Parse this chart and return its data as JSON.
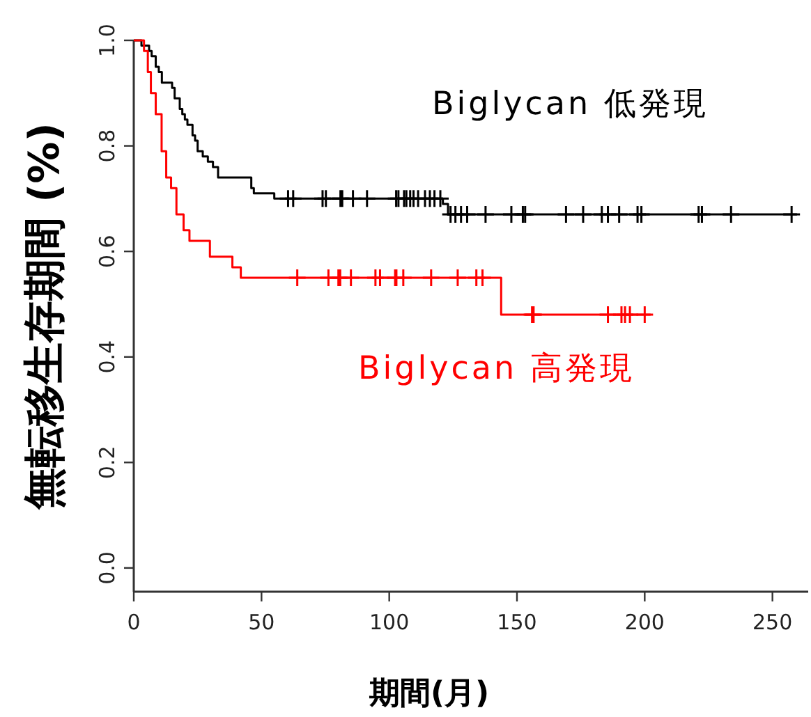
{
  "chart_data": {
    "type": "step",
    "xlabel": "期間(月)",
    "ylabel": "無転移生存期間 (%)",
    "xlim": [
      0,
      264
    ],
    "ylim": [
      -0.045,
      1.0
    ],
    "xticks": [
      0,
      50,
      100,
      150,
      200,
      250
    ],
    "yticks": [
      {
        "value": 0,
        "label": "0.0"
      },
      {
        "value": 0.2,
        "label": "0.2"
      },
      {
        "value": 0.4,
        "label": "0.4"
      },
      {
        "value": 0.6,
        "label": "0.6"
      },
      {
        "value": 0.8,
        "label": "0.8"
      },
      {
        "value": 1,
        "label": "1.0"
      }
    ],
    "legend": "right",
    "grid": false,
    "series": [
      {
        "name": "Biglycan 低発現",
        "color": "#000000",
        "x": [
          0,
          3,
          6,
          7,
          8.6,
          9.8,
          11,
          15,
          16,
          18,
          19,
          20,
          21,
          23,
          24,
          25,
          27,
          29,
          31,
          33,
          46,
          47,
          55,
          121,
          123,
          259.6
        ],
        "values": [
          1,
          0.99,
          0.98,
          0.97,
          0.95,
          0.94,
          0.92,
          0.91,
          0.89,
          0.87,
          0.86,
          0.85,
          0.84,
          0.82,
          0.81,
          0.79,
          0.78,
          0.77,
          0.76,
          0.74,
          0.72,
          0.71,
          0.7,
          0.69,
          0.67,
          0.67
        ]
      },
      {
        "name": "Biglycan 高発現",
        "color": "#ff0000",
        "x": [
          0,
          4,
          5.5,
          6.7,
          8.6,
          10.9,
          12.7,
          14.6,
          16.7,
          19.5,
          21.8,
          29.8,
          38.6,
          41.9,
          143.8,
          202.3
        ],
        "values": [
          1,
          0.98,
          0.94,
          0.9,
          0.86,
          0.79,
          0.74,
          0.72,
          0.67,
          0.64,
          0.62,
          0.59,
          0.57,
          0.55,
          0.48,
          0.48
        ]
      },
      {
        "type": "scatter",
        "marker": "cross",
        "color": "#000000",
        "x": [
          60.4,
          62.4,
          73.9,
          75.2,
          80.9,
          81.6,
          85.8,
          91.3,
          102.7,
          103.6,
          105.8,
          106.7,
          108.2,
          109.5,
          111.3,
          114,
          115.9,
          117.7,
          120,
          124,
          125.9,
          128.1,
          130.5,
          137.7,
          147.8,
          152.3,
          153.2,
          169.2,
          175.9,
          183.2,
          185.6,
          190,
          197.2,
          198.7,
          221.1,
          222.4,
          233.8,
          257.5
        ],
        "values": [
          0.7,
          0.7,
          0.7,
          0.7,
          0.7,
          0.7,
          0.7,
          0.7,
          0.7,
          0.7,
          0.7,
          0.7,
          0.7,
          0.7,
          0.7,
          0.7,
          0.7,
          0.7,
          0.7,
          0.67,
          0.67,
          0.67,
          0.67,
          0.67,
          0.67,
          0.67,
          0.67,
          0.67,
          0.67,
          0.67,
          0.67,
          0.67,
          0.67,
          0.67,
          0.67,
          0.67,
          0.67,
          0.67
        ]
      },
      {
        "type": "scatter",
        "marker": "cross",
        "color": "#ff0000",
        "x": [
          64,
          76.2,
          80.1,
          80.8,
          85,
          94.6,
          96.4,
          102.3,
          102.8,
          105.5,
          116.4,
          126.8,
          134.1,
          136.5,
          155.9,
          156.5,
          185.6,
          190.9,
          192.3,
          194.2,
          200
        ],
        "values": [
          0.55,
          0.55,
          0.55,
          0.55,
          0.55,
          0.55,
          0.55,
          0.55,
          0.55,
          0.55,
          0.55,
          0.55,
          0.55,
          0.55,
          0.48,
          0.48,
          0.48,
          0.48,
          0.48,
          0.48,
          0.48
        ]
      }
    ]
  }
}
